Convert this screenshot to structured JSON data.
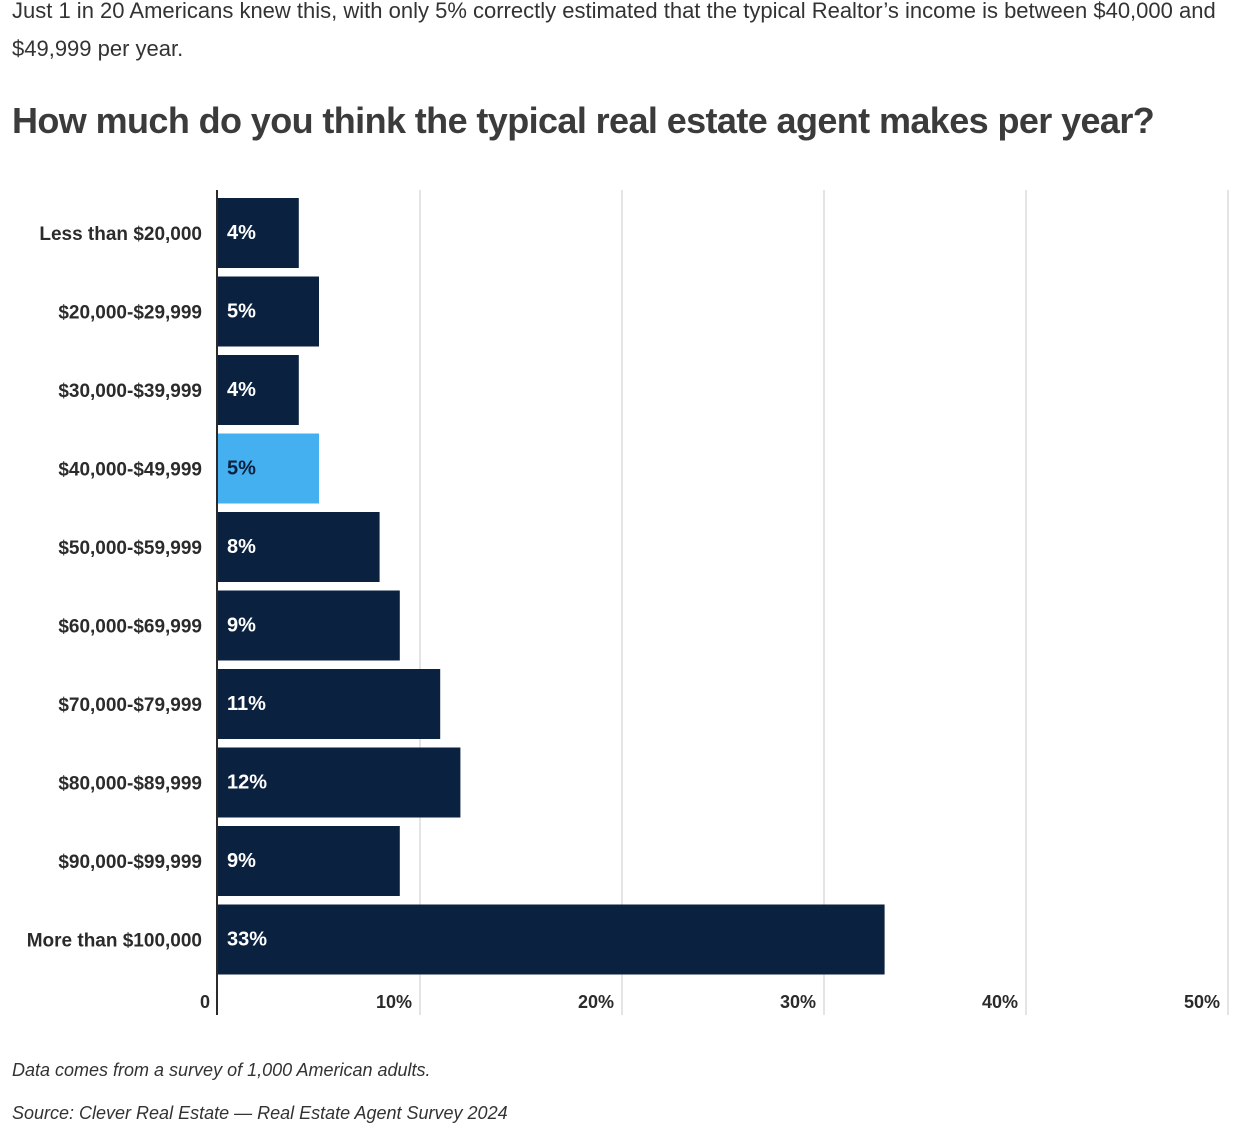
{
  "intro_text": "Just 1 in 20 Americans knew this, with only 5% correctly estimated that the typical Realtor’s income is between $40,000 and $49,999 per year.",
  "colors": {
    "bar": "#0a2240",
    "highlight": "#45b0ef",
    "grid": "#c8c8c8",
    "axis": "#2b2b2b",
    "label": "#2b2b2b",
    "bar_text": "#ffffff",
    "highlight_text": "#0a2240"
  },
  "chart_data": {
    "type": "bar",
    "orientation": "horizontal",
    "title": "How much do you think the typical real estate agent makes per year?",
    "categories": [
      "Less than $20,000",
      "$20,000-$29,999",
      "$30,000-$39,999",
      "$40,000-$49,999",
      "$50,000-$59,999",
      "$60,000-$69,999",
      "$70,000-$79,999",
      "$80,000-$89,999",
      "$90,000-$99,999",
      "More than $100,000"
    ],
    "values": [
      4,
      5,
      4,
      5,
      8,
      9,
      11,
      12,
      9,
      33
    ],
    "value_labels": [
      "4%",
      "5%",
      "4%",
      "5%",
      "8%",
      "9%",
      "11%",
      "12%",
      "9%",
      "33%"
    ],
    "highlight_category": "$40,000-$49,999",
    "xlim": [
      0,
      50
    ],
    "xticks": [
      0,
      10,
      20,
      30,
      40,
      50
    ],
    "xtick_labels": [
      "0",
      "10%",
      "20%",
      "30%",
      "40%",
      "50%"
    ],
    "grid": true
  },
  "footnote": "Data comes from a survey of 1,000 American adults.",
  "source": "Source: Clever Real Estate — Real Estate Agent Survey 2024"
}
